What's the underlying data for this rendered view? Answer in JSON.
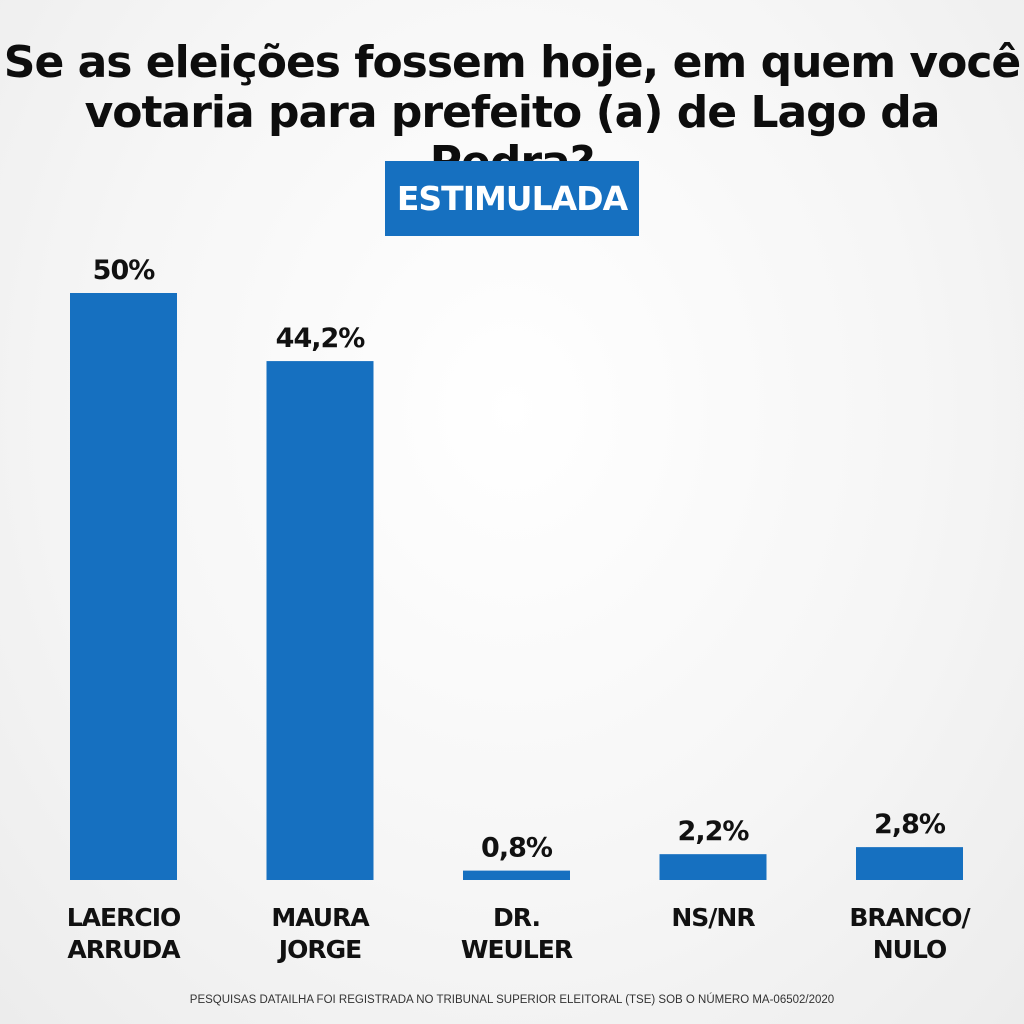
{
  "title_lines": [
    "Se as eleições fossem hoje, em quem você",
    "votaria para prefeito (a) de Lago da Pedra?"
  ],
  "badge": "ESTIMULADA",
  "footer": "PESQUISAS DATAILHA FOI REGISTRADA NO TRIBUNAL SUPERIOR ELEITORAL (TSE) SOB O NÚMERO MA-06502/2020",
  "colors": {
    "bar": "#1670c0",
    "label": "#111111"
  },
  "chart_data": {
    "type": "bar",
    "categories": [
      [
        "LAERCIO",
        "ARRUDA"
      ],
      [
        "MAURA",
        "JORGE"
      ],
      [
        "DR.",
        "WEULER"
      ],
      [
        "NS/NR"
      ],
      [
        "BRANCO/",
        "NULO"
      ]
    ],
    "values": [
      50,
      44.2,
      0.8,
      2.2,
      2.8
    ],
    "value_labels": [
      "50%",
      "44,2%",
      "0,8%",
      "2,2%",
      "2,8%"
    ],
    "ylim": [
      0,
      50
    ],
    "grid": false
  }
}
